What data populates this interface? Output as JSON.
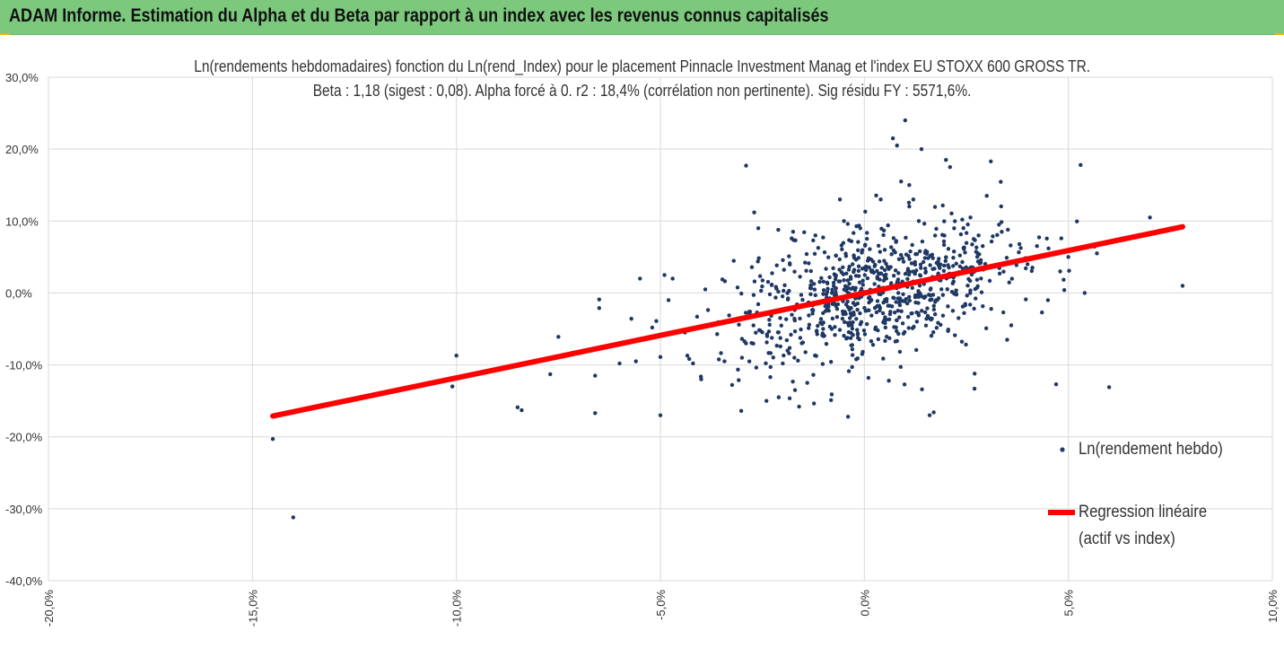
{
  "header": {
    "title": "ADAM Informe. Estimation du Alpha et du Beta par rapport à un index avec les revenus connus capitalisés"
  },
  "colors": {
    "header_bg": "#7cc97e",
    "accent_corner": "#f0b400",
    "points": "#1f3864",
    "regression": "#ff0000",
    "grid": "#d9d9d9"
  },
  "chart_data": {
    "type": "scatter",
    "title_line1": "Ln(rendements hebdomadaires) fonction du Ln(rend_Index) pour le placement Pinnacle Investment Manag et l'index EU STOXX 600 GROSS TR.",
    "title_line2": "Beta : 1,18 (sigest : 0,08). Alpha forcé à 0. r2 : 18,4% (corrélation non pertinente). Sig résidu FY : 5571,6%.",
    "xlim": [
      -0.2,
      0.1
    ],
    "ylim": [
      -0.4,
      0.3
    ],
    "x_ticks": [
      "-20,0%",
      "-15,0%",
      "-10,0%",
      "-5,0%",
      "0,0%",
      "5,0%",
      "10,0%"
    ],
    "y_ticks": [
      "30,0%",
      "20,0%",
      "10,0%",
      "0,0%",
      "-10,0%",
      "-20,0%",
      "-30,0%",
      "-40,0%"
    ],
    "grid": true,
    "legend_position": "right",
    "series": [
      {
        "name": "Ln(rendement hebdo)",
        "kind": "scatter",
        "points": [
          [
            -0.145,
            -0.203
          ],
          [
            -0.14,
            -0.312
          ],
          [
            -0.1,
            -0.087
          ],
          [
            -0.101,
            -0.13
          ],
          [
            -0.085,
            -0.159
          ],
          [
            -0.084,
            -0.163
          ],
          [
            -0.075,
            -0.061
          ],
          [
            -0.077,
            -0.113
          ],
          [
            -0.066,
            -0.115
          ],
          [
            -0.066,
            -0.167
          ],
          [
            -0.065,
            -0.009
          ],
          [
            -0.065,
            -0.021
          ],
          [
            -0.06,
            -0.098
          ],
          [
            -0.056,
            -0.095
          ],
          [
            -0.055,
            0.02
          ],
          [
            -0.052,
            -0.048
          ],
          [
            -0.051,
            -0.039
          ],
          [
            -0.05,
            -0.17
          ],
          [
            -0.05,
            -0.089
          ],
          [
            -0.049,
            0.025
          ],
          [
            -0.047,
            0.02
          ],
          [
            -0.048,
            -0.01
          ],
          [
            -0.044,
            -0.055
          ],
          [
            -0.042,
            -0.098
          ],
          [
            -0.041,
            -0.033
          ],
          [
            -0.04,
            -0.12
          ],
          [
            -0.039,
            0.005
          ],
          [
            -0.03,
            -0.09
          ],
          [
            -0.029,
            0.177
          ],
          [
            -0.027,
            0.112
          ],
          [
            -0.026,
            0.09
          ],
          [
            -0.024,
            -0.15
          ],
          [
            -0.023,
            -0.103
          ],
          [
            -0.021,
            -0.145
          ],
          [
            -0.02,
            -0.098
          ],
          [
            -0.018,
            -0.058
          ],
          [
            -0.017,
            -0.135
          ],
          [
            -0.016,
            -0.158
          ],
          [
            -0.014,
            -0.125
          ],
          [
            -0.012,
            0.08
          ],
          [
            -0.01,
            -0.06
          ],
          [
            -0.008,
            -0.141
          ],
          [
            -0.006,
            0.13
          ],
          [
            -0.005,
            0.1
          ],
          [
            -0.004,
            -0.172
          ],
          [
            -0.003,
            -0.103
          ],
          [
            -0.001,
            0.09
          ],
          [
            0.001,
            -0.118
          ],
          [
            0.004,
            0.13
          ],
          [
            0.005,
            0.06
          ],
          [
            0.006,
            -0.122
          ],
          [
            0.007,
            0.215
          ],
          [
            0.008,
            0.205
          ],
          [
            0.009,
            0.155
          ],
          [
            0.01,
            0.24
          ],
          [
            0.011,
            0.15
          ],
          [
            0.012,
            0.13
          ],
          [
            0.014,
            0.2
          ],
          [
            0.016,
            -0.17
          ],
          [
            0.017,
            -0.166
          ],
          [
            0.02,
            0.185
          ],
          [
            0.021,
            0.175
          ],
          [
            0.022,
            0.09
          ],
          [
            0.024,
            0.102
          ],
          [
            0.026,
            0.105
          ],
          [
            0.027,
            -0.133
          ],
          [
            0.028,
            0.08
          ],
          [
            0.03,
            0.135
          ],
          [
            0.031,
            0.183
          ],
          [
            0.033,
            0.095
          ],
          [
            0.035,
            -0.065
          ],
          [
            0.036,
            -0.045
          ],
          [
            0.038,
            0.068
          ],
          [
            0.04,
            0.04
          ],
          [
            0.042,
            0.05
          ],
          [
            0.045,
            -0.01
          ],
          [
            0.047,
            -0.127
          ],
          [
            0.048,
            0.03
          ],
          [
            0.049,
            0.004
          ],
          [
            0.05,
            0.05
          ],
          [
            0.053,
            0.178
          ],
          [
            0.054,
            0.0
          ],
          [
            0.057,
            0.055
          ],
          [
            0.06,
            -0.131
          ],
          [
            0.07,
            0.105
          ],
          [
            0.078,
            0.01
          ]
        ]
      },
      {
        "name": "Regression linéaire",
        "name_line2": "(actif vs index)",
        "kind": "line",
        "beta": 1.18,
        "x_range": [
          -0.145,
          0.078
        ]
      }
    ]
  }
}
